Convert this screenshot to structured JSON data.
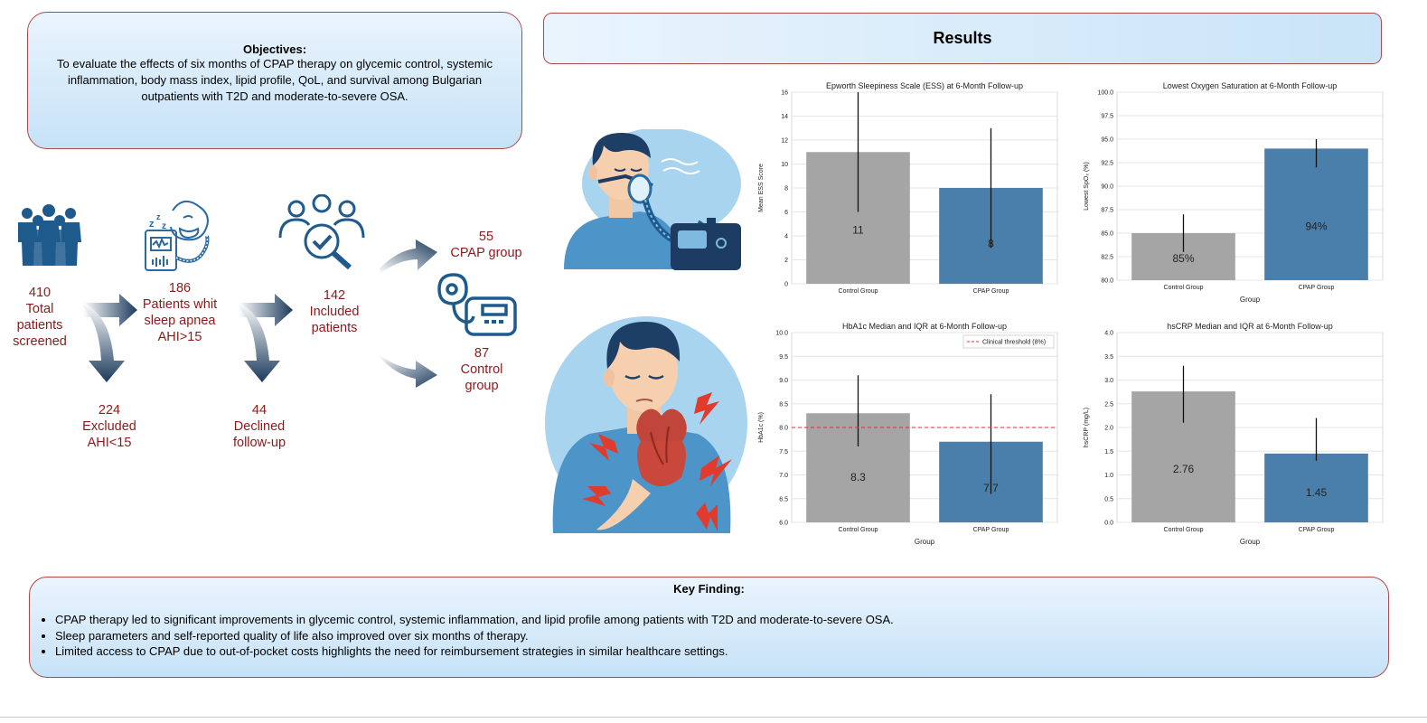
{
  "objectives": {
    "title": "Objectives:",
    "text": "To evaluate the effects of six months of CPAP therapy on glycemic control, systemic inflammation, body mass index, lipid profile, QoL, and survival among Bulgarian outpatients with T2D and moderate-to-severe OSA."
  },
  "results_title": "Results",
  "flow": {
    "screened": {
      "count": "410",
      "l1": "Total",
      "l2": "patients",
      "l3": "screened"
    },
    "sleep_apnea": {
      "count": "186",
      "l1": "Patients whit",
      "l2": "sleep apnea",
      "l3": "AHI>15"
    },
    "excluded": {
      "count": "224",
      "l1": "Excluded",
      "l2": "AHI<15"
    },
    "included": {
      "count": "142",
      "l1": "Included",
      "l2": "patients"
    },
    "declined": {
      "count": "44",
      "l1": "Declined",
      "l2": "follow-up"
    },
    "cpap": {
      "count": "55",
      "l1": "CPAP group"
    },
    "control": {
      "count": "87",
      "l1": "Control",
      "l2": "group"
    }
  },
  "icons": [
    "people-group-icon",
    "sleep-apnea-device-icon",
    "selection-magnifier-icon",
    "cpap-machine-icon",
    "cpap-mask-illustration",
    "heart-pain-illustration"
  ],
  "colors": {
    "control": "#a5a5a5",
    "cpap": "#4a7fab",
    "threshold": "#e03030",
    "flow_text": "#8b1a1a",
    "arrow": "#1b3a5c",
    "border": "#b04a4a"
  },
  "chart_data": [
    {
      "type": "bar",
      "title": "Epworth Sleepiness Scale (ESS) at 6-Month Follow-up",
      "categories": [
        "Control Group",
        "CPAP Group"
      ],
      "values": [
        11,
        8
      ],
      "value_labels": [
        "11",
        "8"
      ],
      "error_low": [
        6,
        3
      ],
      "error_high": [
        16,
        13
      ],
      "xlabel": "",
      "ylabel": "Mean ESS Score",
      "ylim": [
        0,
        16
      ],
      "yticks": [
        0,
        2,
        4,
        6,
        8,
        10,
        12,
        14,
        16
      ],
      "ytick_labels": [
        "0",
        "2",
        "4",
        "6",
        "8",
        "10",
        "12",
        "14",
        "16"
      ],
      "grid": true
    },
    {
      "type": "bar",
      "title": "Lowest Oxygen Saturation at 6-Month Follow-up",
      "categories": [
        "Control Group",
        "CPAP Group"
      ],
      "values": [
        85,
        94
      ],
      "value_labels": [
        "85%",
        "94%"
      ],
      "error_low": [
        83,
        92
      ],
      "error_high": [
        87,
        95
      ],
      "xlabel": "Group",
      "ylabel": "Lowest SpO₂ (%)",
      "ylim": [
        80,
        100
      ],
      "yticks": [
        80,
        82.5,
        85,
        87.5,
        90,
        92.5,
        95,
        97.5,
        100
      ],
      "ytick_labels": [
        "80.0",
        "82.5",
        "85.0",
        "87.5",
        "90.0",
        "92.5",
        "95.0",
        "97.5",
        "100.0"
      ],
      "grid": true
    },
    {
      "type": "bar",
      "title": "HbA1c Median and IQR at 6-Month Follow-up",
      "categories": [
        "Control Group",
        "CPAP Group"
      ],
      "values": [
        8.3,
        7.7
      ],
      "value_labels": [
        "8.3",
        "7.7"
      ],
      "error_low": [
        7.6,
        6.6
      ],
      "error_high": [
        9.1,
        8.7
      ],
      "xlabel": "Group",
      "ylabel": "HbA1c (%)",
      "ylim": [
        6,
        10
      ],
      "yticks": [
        6,
        6.5,
        7,
        7.5,
        8,
        8.5,
        9,
        9.5,
        10
      ],
      "ytick_labels": [
        "6.0",
        "6.5",
        "7.0",
        "7.5",
        "8.0",
        "8.5",
        "9.0",
        "9.5",
        "10.0"
      ],
      "threshold": {
        "value": 8,
        "label": "Clinical threshold (8%)"
      },
      "legend": "top-right",
      "grid": true
    },
    {
      "type": "bar",
      "title": "hsCRP Median and IQR at 6-Month Follow-up",
      "categories": [
        "Control Group",
        "CPAP Group"
      ],
      "values": [
        2.76,
        1.45
      ],
      "value_labels": [
        "2.76",
        "1.45"
      ],
      "error_low": [
        2.1,
        1.3
      ],
      "error_high": [
        3.3,
        2.2
      ],
      "xlabel": "Group",
      "ylabel": "hsCRP (mg/L)",
      "ylim": [
        0,
        4
      ],
      "yticks": [
        0,
        0.5,
        1,
        1.5,
        2,
        2.5,
        3,
        3.5,
        4
      ],
      "ytick_labels": [
        "0.0",
        "0.5",
        "1.0",
        "1.5",
        "2.0",
        "2.5",
        "3.0",
        "3.5",
        "4.0"
      ],
      "grid": true
    }
  ],
  "key_finding": {
    "title": "Key Finding:",
    "bullets": [
      "CPAP therapy led to significant improvements in glycemic control, systemic inflammation, and lipid profile among patients with T2D and moderate-to-severe OSA.",
      "Sleep parameters and self-reported quality of life also improved over six months of therapy.",
      "Limited access to CPAP due to out-of-pocket costs highlights the need for reimbursement strategies in similar healthcare settings."
    ]
  }
}
